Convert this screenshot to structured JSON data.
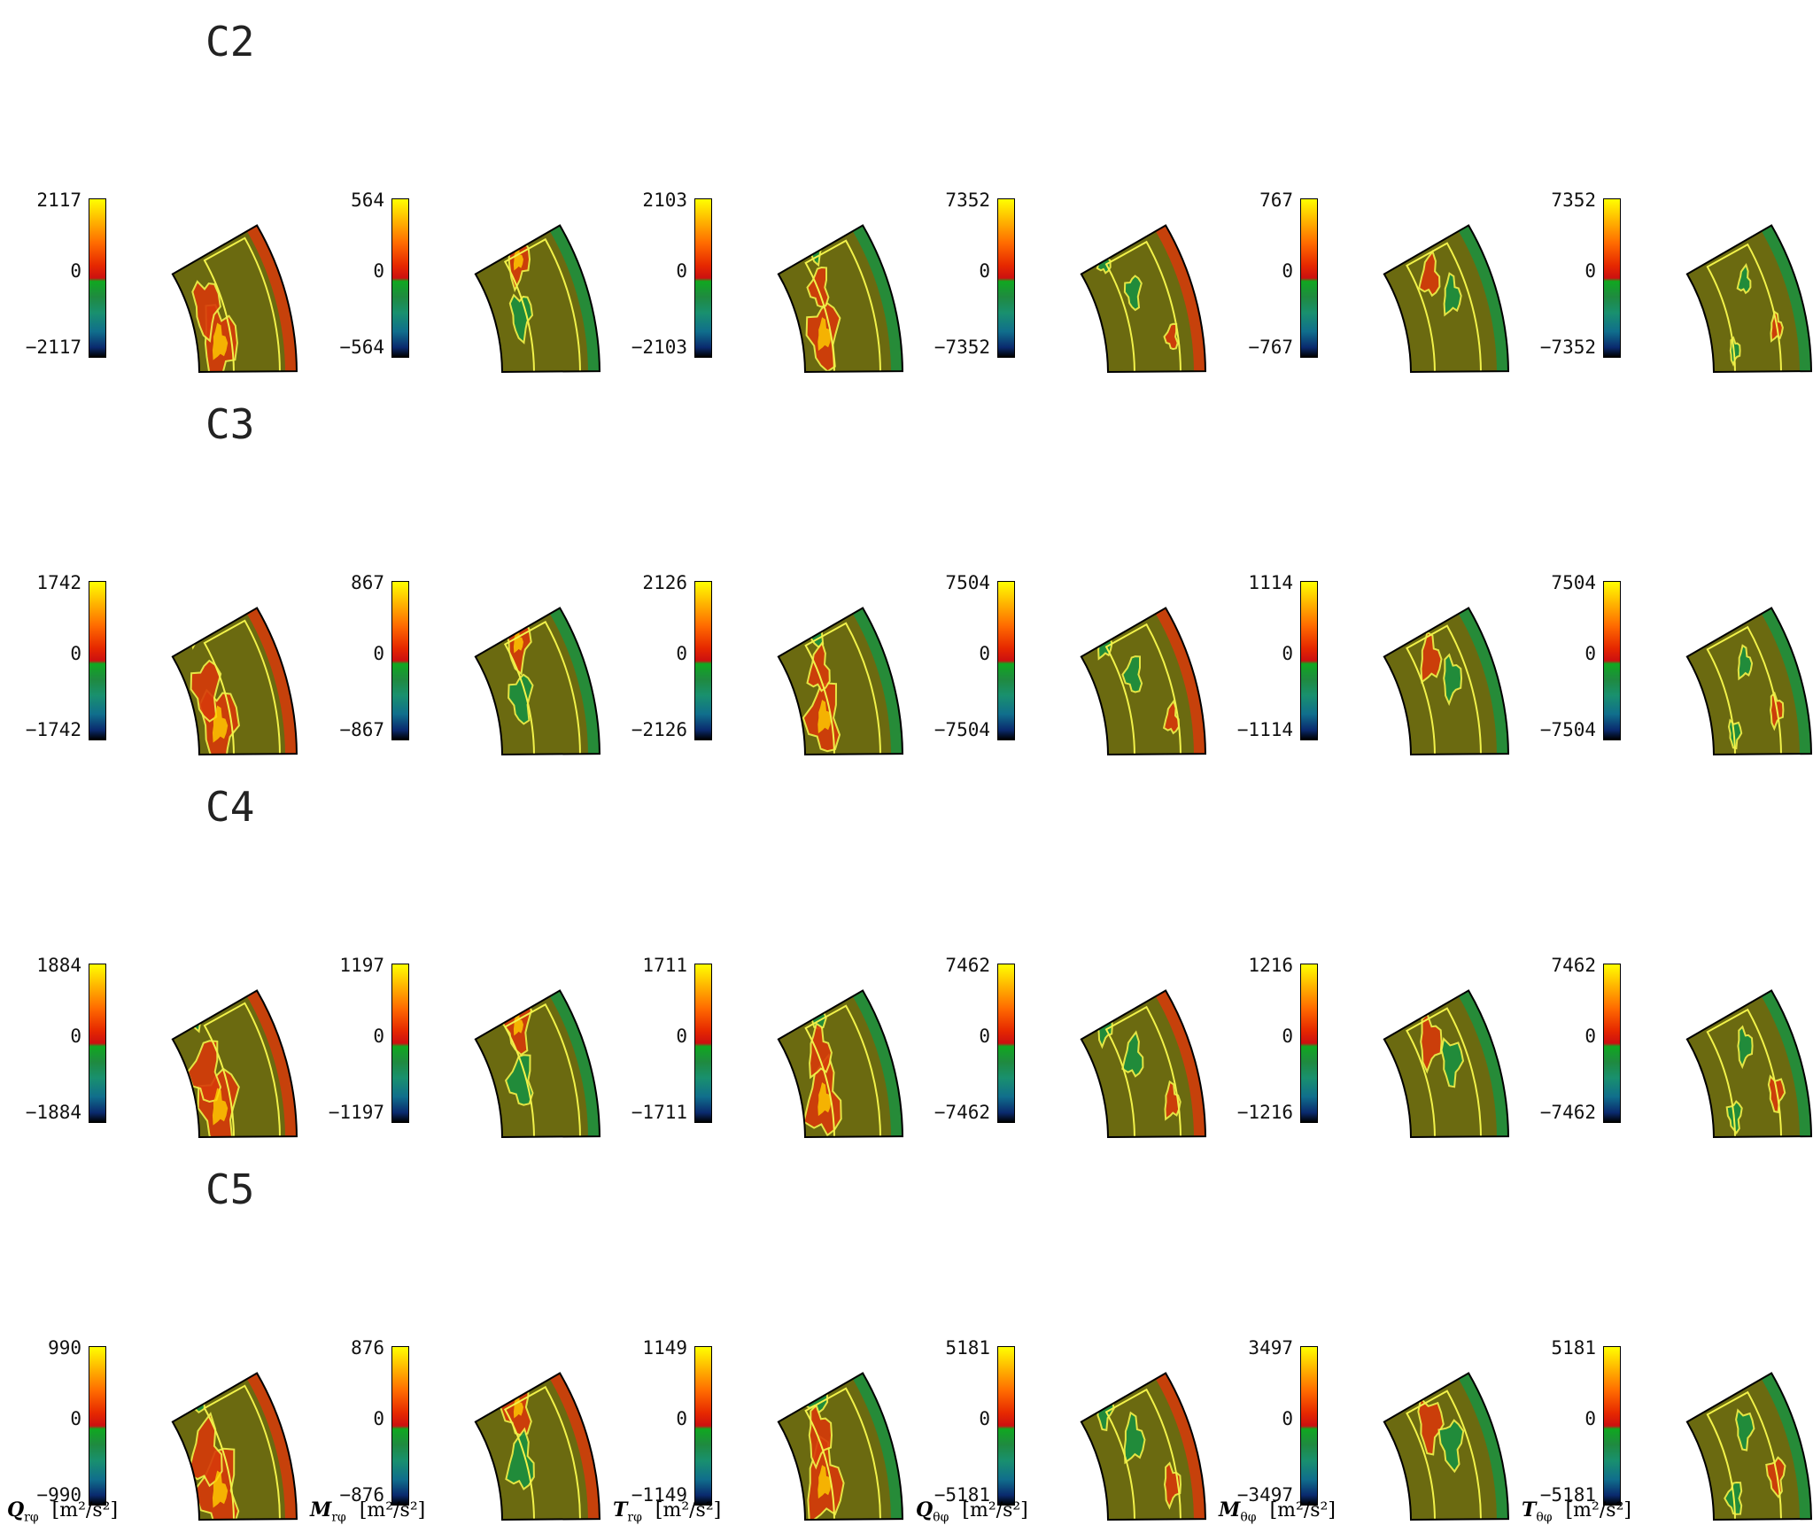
{
  "columns": [
    {
      "symbol": "Q",
      "subscript": "rφ",
      "unit": "[m²/s²]"
    },
    {
      "symbol": "M",
      "subscript": "rφ",
      "unit": "[m²/s²]"
    },
    {
      "symbol": "T",
      "subscript": "rφ",
      "unit": "[m²/s²]"
    },
    {
      "symbol": "Q",
      "subscript": "θφ",
      "unit": "[m²/s²]"
    },
    {
      "symbol": "M",
      "subscript": "θφ",
      "unit": "[m²/s²]"
    },
    {
      "symbol": "T",
      "subscript": "θφ",
      "unit": "[m²/s²]"
    }
  ],
  "rows": [
    {
      "case": "C2",
      "ranges": [
        {
          "max": "2117",
          "zero": "0",
          "min": "−2117"
        },
        {
          "max": "564",
          "zero": "0",
          "min": "−564"
        },
        {
          "max": "2103",
          "zero": "0",
          "min": "−2103"
        },
        {
          "max": "7352",
          "zero": "0",
          "min": "−7352"
        },
        {
          "max": "767",
          "zero": "0",
          "min": "−767"
        },
        {
          "max": "7352",
          "zero": "0",
          "min": "−7352"
        }
      ]
    },
    {
      "case": "C3",
      "ranges": [
        {
          "max": "1742",
          "zero": "0",
          "min": "−1742"
        },
        {
          "max": "867",
          "zero": "0",
          "min": "−867"
        },
        {
          "max": "2126",
          "zero": "0",
          "min": "−2126"
        },
        {
          "max": "7504",
          "zero": "0",
          "min": "−7504"
        },
        {
          "max": "1114",
          "zero": "0",
          "min": "−1114"
        },
        {
          "max": "7504",
          "zero": "0",
          "min": "−7504"
        }
      ]
    },
    {
      "case": "C4",
      "ranges": [
        {
          "max": "1884",
          "zero": "0",
          "min": "−1884"
        },
        {
          "max": "1197",
          "zero": "0",
          "min": "−1197"
        },
        {
          "max": "1711",
          "zero": "0",
          "min": "−1711"
        },
        {
          "max": "7462",
          "zero": "0",
          "min": "−7462"
        },
        {
          "max": "1216",
          "zero": "0",
          "min": "−1216"
        },
        {
          "max": "7462",
          "zero": "0",
          "min": "−7462"
        }
      ]
    },
    {
      "case": "C5",
      "ranges": [
        {
          "max": "990",
          "zero": "0",
          "min": "−990"
        },
        {
          "max": "876",
          "zero": "0",
          "min": "−876"
        },
        {
          "max": "1149",
          "zero": "0",
          "min": "−1149"
        },
        {
          "max": "5181",
          "zero": "0",
          "min": "−5181"
        },
        {
          "max": "3497",
          "zero": "0",
          "min": "−3497"
        },
        {
          "max": "5181",
          "zero": "0",
          "min": "−5181"
        }
      ]
    }
  ],
  "colors": {
    "background_field": "#6b6a10",
    "positive": "#d63a0a",
    "positive_strong": "#ffd000",
    "negative": "#1a9040",
    "negative_strong": "#0a1a60",
    "contour": "#f2f24a",
    "outline": "#000000"
  }
}
